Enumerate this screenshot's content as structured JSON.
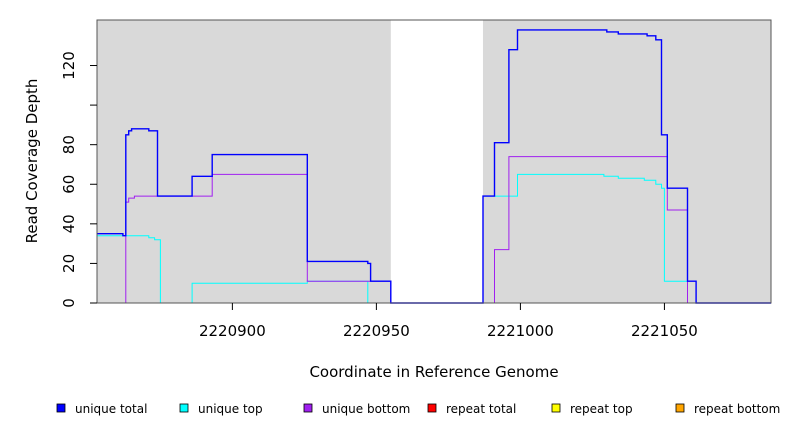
{
  "chart_data": {
    "type": "line",
    "xlabel": "Coordinate in Reference Genome",
    "ylabel": "Read Coverage Depth",
    "xlim": [
      2220853,
      2221087
    ],
    "ylim": [
      0,
      143
    ],
    "x_ticks": [
      2220900,
      2220950,
      2221000,
      2221050
    ],
    "y_ticks": [
      0,
      20,
      40,
      60,
      80,
      100,
      120
    ],
    "y_tick_labels": [
      "0",
      "20",
      "40",
      "60",
      "80",
      "",
      "120"
    ],
    "shaded_regions": [
      [
        2220853,
        2220955
      ],
      [
        2220987,
        2221087
      ]
    ],
    "legend_position": "bottom",
    "series": [
      {
        "name": "unique total",
        "color": "#0000ff",
        "x": [
          2220853,
          2220862,
          2220862,
          2220863,
          2220863,
          2220864,
          2220864,
          2220865,
          2220865,
          2220871,
          2220871,
          2220874,
          2220874,
          2220886,
          2220886,
          2220893,
          2220893,
          2220926,
          2220926,
          2220947,
          2220947,
          2220948,
          2220948,
          2220955,
          2220955,
          2220987,
          2220987,
          2220991,
          2220991,
          2220996,
          2220996,
          2220999,
          2220999,
          2221030,
          2221030,
          2221034,
          2221034,
          2221044,
          2221044,
          2221047,
          2221047,
          2221049,
          2221049,
          2221051,
          2221051,
          2221058,
          2221058,
          2221061,
          2221061,
          2221087
        ],
        "y": [
          35,
          35,
          34,
          34,
          85,
          85,
          87,
          87,
          88,
          88,
          87,
          87,
          54,
          54,
          64,
          64,
          75,
          75,
          21,
          21,
          20,
          20,
          11,
          11,
          0,
          0,
          54,
          54,
          81,
          81,
          128,
          128,
          138,
          138,
          137,
          137,
          136,
          136,
          135,
          135,
          133,
          133,
          85,
          85,
          58,
          58,
          11,
          11,
          0,
          0
        ]
      },
      {
        "name": "unique top",
        "color": "#00ffff",
        "x": [
          2220853,
          2220871,
          2220871,
          2220873,
          2220873,
          2220875,
          2220875,
          2220886,
          2220886,
          2220926,
          2220926,
          2220947,
          2220947,
          2220955,
          2220955,
          2220987,
          2220987,
          2220999,
          2220999,
          2221029,
          2221029,
          2221034,
          2221034,
          2221043,
          2221043,
          2221047,
          2221047,
          2221049,
          2221049,
          2221050,
          2221050,
          2221058,
          2221058,
          2221087
        ],
        "y": [
          34,
          34,
          33,
          33,
          32,
          32,
          0,
          0,
          10,
          10,
          11,
          11,
          0,
          0,
          0,
          0,
          54,
          54,
          65,
          65,
          64,
          64,
          63,
          63,
          62,
          62,
          60,
          60,
          58,
          58,
          11,
          11,
          0,
          0
        ]
      },
      {
        "name": "unique bottom",
        "color": "#a020f0",
        "x": [
          2220853,
          2220863,
          2220863,
          2220864,
          2220864,
          2220866,
          2220866,
          2220893,
          2220893,
          2220926,
          2220926,
          2220955,
          2220955,
          2220991,
          2220991,
          2220996,
          2220996,
          2221051,
          2221051,
          2221058,
          2221058,
          2221087
        ],
        "y": [
          0,
          0,
          51,
          51,
          53,
          53,
          54,
          54,
          65,
          65,
          11,
          11,
          0,
          0,
          27,
          27,
          74,
          74,
          47,
          47,
          0,
          0
        ]
      },
      {
        "name": "repeat total",
        "color": "#ff0000",
        "x": [
          2220853,
          2221087
        ],
        "y": [
          0,
          0
        ]
      },
      {
        "name": "repeat top",
        "color": "#ffff00",
        "x": [
          2220853,
          2221087
        ],
        "y": [
          0,
          0
        ]
      },
      {
        "name": "repeat bottom",
        "color": "#ffa500",
        "x": [
          2220853,
          2221087
        ],
        "y": [
          0,
          0
        ]
      }
    ]
  }
}
